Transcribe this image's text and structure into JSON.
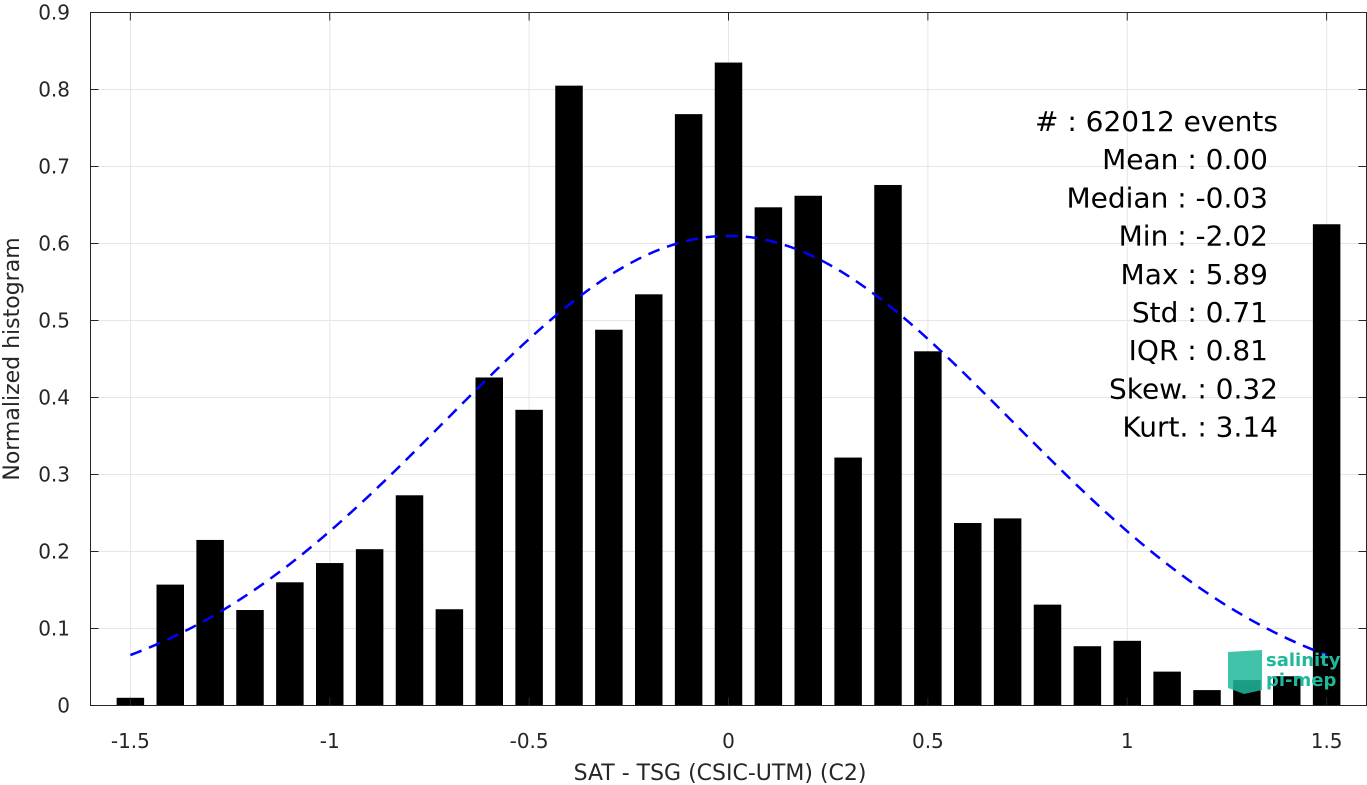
{
  "chart_data": {
    "type": "bar",
    "xlabel": "SAT - TSG (CSIC-UTM) (C2)",
    "ylabel": "Normalized histogram",
    "xlim": [
      -1.6,
      1.6
    ],
    "ylim": [
      0,
      0.9
    ],
    "xticks": [
      -1.5,
      -1,
      -0.5,
      0,
      0.5,
      1,
      1.5
    ],
    "xtick_labels": [
      "-1.5",
      "-1",
      "-0.5",
      "0",
      "0.5",
      "1",
      "1.5"
    ],
    "yticks": [
      0,
      0.1,
      0.2,
      0.3,
      0.4,
      0.5,
      0.6,
      0.7,
      0.8,
      0.9
    ],
    "ytick_labels": [
      "0",
      "0.1",
      "0.2",
      "0.3",
      "0.4",
      "0.5",
      "0.6",
      "0.7",
      "0.8",
      "0.9"
    ],
    "grid": true,
    "bars": {
      "x": [
        -1.5,
        -1.4,
        -1.3,
        -1.2,
        -1.1,
        -1.0,
        -0.9,
        -0.8,
        -0.7,
        -0.6,
        -0.5,
        -0.4,
        -0.3,
        -0.2,
        -0.1,
        0.0,
        0.1,
        0.2,
        0.3,
        0.4,
        0.5,
        0.6,
        0.7,
        0.8,
        0.9,
        1.0,
        1.1,
        1.2,
        1.3,
        1.4,
        1.5
      ],
      "values": [
        0.01,
        0.157,
        0.215,
        0.124,
        0.16,
        0.185,
        0.203,
        0.273,
        0.125,
        0.426,
        0.384,
        0.805,
        0.488,
        0.534,
        0.768,
        0.835,
        0.647,
        0.662,
        0.322,
        0.676,
        0.46,
        0.237,
        0.243,
        0.131,
        0.077,
        0.084,
        0.044,
        0.02,
        0.033,
        0.038,
        0.625
      ],
      "color": "#000000"
    },
    "fit": {
      "kind": "gaussian",
      "mean": 0.0,
      "std": 0.71,
      "peak": 0.61,
      "xrange": [
        -1.5,
        1.5
      ],
      "color": "#0000ff",
      "style": "dashed"
    },
    "stats_lines": [
      "#  : 62012 events",
      "Mean : 0.00",
      "Median : -0.03",
      "Min : -2.02",
      "Max : 5.89",
      "Std : 0.71",
      "IQR : 0.81",
      "Skew. : 0.32",
      "Kurt. : 3.14"
    ]
  },
  "logo": {
    "line1": "salinity",
    "line2": "pi-mep",
    "color": "#1fb89a"
  }
}
